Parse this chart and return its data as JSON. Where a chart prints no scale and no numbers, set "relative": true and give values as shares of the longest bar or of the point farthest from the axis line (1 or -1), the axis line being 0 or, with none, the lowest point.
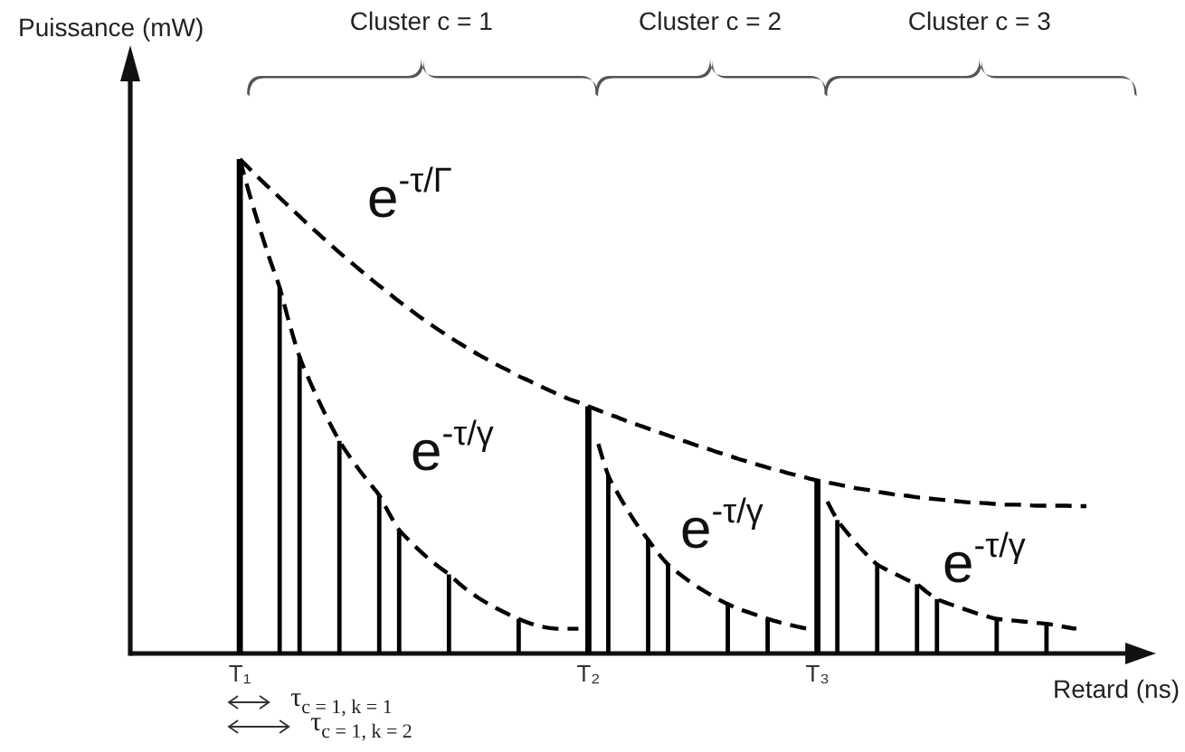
{
  "chart_data": {
    "type": "bar",
    "relative": true,
    "ylabel": "Puissance (mW)",
    "xlabel": "Retard (ns)",
    "tick_labels": "x",
    "line_style": "dashed",
    "categories": [
      null,
      null,
      null,
      null,
      null,
      null,
      null,
      null,
      null,
      null,
      null,
      "T₁",
      null,
      null,
      null,
      null,
      null,
      null,
      null,
      null,
      null,
      null,
      null,
      null,
      null,
      null,
      null,
      null,
      null,
      null,
      null,
      null,
      null,
      null,
      null,
      null,
      null,
      null,
      null,
      null,
      null,
      null,
      null,
      null,
      null,
      null,
      "T₂",
      null,
      null,
      null,
      null,
      null,
      null,
      null,
      null,
      null,
      null,
      null,
      null,
      null,
      null,
      null,
      null,
      null,
      null,
      null,
      null,
      null,
      null,
      "T₃",
      null,
      null,
      null,
      null,
      null,
      null,
      null,
      null,
      null,
      null,
      null,
      null,
      null,
      null,
      null,
      null,
      null,
      null,
      null,
      null,
      null,
      null,
      null,
      null,
      null,
      null,
      null,
      null,
      null,
      null,
      null,
      null,
      null,
      null
    ],
    "series": [
      {
        "color": "#000000",
        "values": [
          null,
          null,
          null,
          null,
          null,
          null,
          null,
          null,
          null,
          null,
          null,
          1,
          null,
          null,
          null,
          0.74,
          null,
          0.6,
          null,
          null,
          null,
          0.43,
          null,
          null,
          null,
          0.32,
          null,
          0.25,
          null,
          null,
          null,
          null,
          0.16,
          null,
          null,
          null,
          null,
          null,
          null,
          0.07,
          null,
          null,
          null,
          null,
          null,
          null,
          0.5,
          null,
          0.36,
          null,
          null,
          null,
          0.23,
          null,
          0.18,
          null,
          null,
          null,
          null,
          null,
          0.1,
          null,
          null,
          null,
          0.07,
          null,
          null,
          null,
          null,
          0.35,
          null,
          0.27,
          null,
          null,
          null,
          0.18,
          null,
          null,
          null,
          0.14,
          null,
          0.11,
          null,
          null,
          null,
          null,
          null,
          0.07,
          null,
          null,
          null,
          null,
          0.06,
          null,
          null,
          null,
          null,
          null,
          null,
          null,
          null,
          null,
          null,
          null
        ]
      },
      {
        "type": "line",
        "color": "#000000",
        "values": [
          null,
          null,
          null,
          null,
          null,
          null,
          null,
          null,
          null,
          null,
          null,
          1,
          0.98,
          0.96,
          0.941,
          0.922,
          0.903,
          0.884,
          0.865,
          0.847,
          0.829,
          0.811,
          0.794,
          0.777,
          0.76,
          0.744,
          0.728,
          0.712,
          0.697,
          0.682,
          0.668,
          0.654,
          0.641,
          0.628,
          0.616,
          0.604,
          0.593,
          0.582,
          0.572,
          0.561,
          0.552,
          0.542,
          0.533,
          0.524,
          0.515,
          0.508,
          0.5,
          0.492,
          0.484,
          0.477,
          0.469,
          0.462,
          0.455,
          0.448,
          0.441,
          0.434,
          0.427,
          0.42,
          0.414,
          0.407,
          0.401,
          0.394,
          0.388,
          0.382,
          0.376,
          0.371,
          0.365,
          0.36,
          0.355,
          0.35,
          0.346,
          0.342,
          0.338,
          0.334,
          0.331,
          0.327,
          0.324,
          0.321,
          0.319,
          0.316,
          0.314,
          0.312,
          0.31,
          0.308,
          0.306,
          0.305,
          0.304,
          0.302,
          0.301,
          0.301,
          0.3,
          0.299,
          0.299,
          0.299,
          0.299,
          0.298,
          0.298,
          null,
          null,
          null,
          null,
          null,
          null,
          null
        ]
      },
      {
        "type": "line",
        "color": "#000000",
        "values": [
          null,
          null,
          null,
          null,
          null,
          null,
          null,
          null,
          null,
          null,
          null,
          1,
          0.927,
          0.86,
          0.798,
          0.74,
          0.666,
          0.6,
          0.552,
          0.508,
          0.467,
          0.43,
          0.399,
          0.371,
          0.345,
          0.32,
          0.283,
          0.25,
          0.229,
          0.209,
          0.191,
          0.175,
          0.16,
          0.142,
          0.126,
          0.112,
          0.1,
          0.089,
          0.079,
          0.07,
          0.062,
          0.056,
          0.052,
          0.05,
          0.05,
          0.05,
          null,
          null,
          null,
          null,
          null,
          null,
          null,
          null,
          null,
          null,
          null,
          null,
          null,
          null,
          null,
          null,
          null,
          null,
          null,
          null,
          null,
          null,
          null,
          null,
          null,
          null,
          null,
          null,
          null,
          null,
          null,
          null,
          null,
          null,
          null,
          null,
          null,
          null,
          null,
          null,
          null,
          null,
          null,
          null,
          null,
          null,
          null,
          null,
          null,
          null,
          null,
          null,
          null,
          null,
          null,
          null,
          null,
          null
        ]
      },
      {
        "type": "line",
        "color": "#000000",
        "values": [
          null,
          null,
          null,
          null,
          null,
          null,
          null,
          null,
          null,
          null,
          null,
          null,
          null,
          null,
          null,
          null,
          null,
          null,
          null,
          null,
          null,
          null,
          null,
          null,
          null,
          null,
          null,
          null,
          null,
          null,
          null,
          null,
          null,
          null,
          null,
          null,
          null,
          null,
          null,
          null,
          null,
          null,
          null,
          null,
          null,
          null,
          null,
          0.424,
          0.36,
          0.322,
          0.288,
          0.257,
          0.23,
          0.203,
          0.18,
          0.163,
          0.148,
          0.134,
          0.122,
          0.11,
          0.1,
          0.091,
          0.084,
          0.077,
          0.07,
          0.064,
          0.059,
          0.054,
          0.05,
          null,
          null,
          null,
          null,
          null,
          null,
          null,
          null,
          null,
          null,
          null,
          null,
          null,
          null,
          null,
          null,
          null,
          null,
          null,
          null,
          null,
          null,
          null,
          null,
          null,
          null,
          null,
          null,
          null,
          null,
          null,
          null,
          null,
          null,
          null
        ]
      },
      {
        "type": "line",
        "color": "#000000",
        "values": [
          null,
          null,
          null,
          null,
          null,
          null,
          null,
          null,
          null,
          null,
          null,
          null,
          null,
          null,
          null,
          null,
          null,
          null,
          null,
          null,
          null,
          null,
          null,
          null,
          null,
          null,
          null,
          null,
          null,
          null,
          null,
          null,
          null,
          null,
          null,
          null,
          null,
          null,
          null,
          null,
          null,
          null,
          null,
          null,
          null,
          null,
          null,
          null,
          null,
          null,
          null,
          null,
          null,
          null,
          null,
          null,
          null,
          null,
          null,
          null,
          null,
          null,
          null,
          null,
          null,
          null,
          null,
          null,
          null,
          null,
          0.307,
          0.27,
          0.244,
          0.22,
          0.199,
          0.18,
          0.169,
          0.159,
          0.149,
          0.14,
          0.124,
          0.11,
          0.102,
          0.095,
          0.088,
          0.081,
          0.075,
          0.07,
          0.068,
          0.066,
          0.064,
          0.062,
          0.06,
          0.057,
          0.053,
          0.05,
          null,
          null,
          null,
          null,
          null,
          null,
          null,
          null
        ]
      }
    ],
    "annotations": [
      "Cluster c = 1",
      "Cluster c = 2",
      "Cluster c = 3",
      "e$^{-τ/Γ}$",
      "e$^{-τ/γ}$",
      "e$^{-τ/γ}$",
      "e$^{-τ/γ}$",
      "τ$_{c = 1, k = 1}$",
      "τ$_{c = 1, k = 2}$"
    ]
  }
}
